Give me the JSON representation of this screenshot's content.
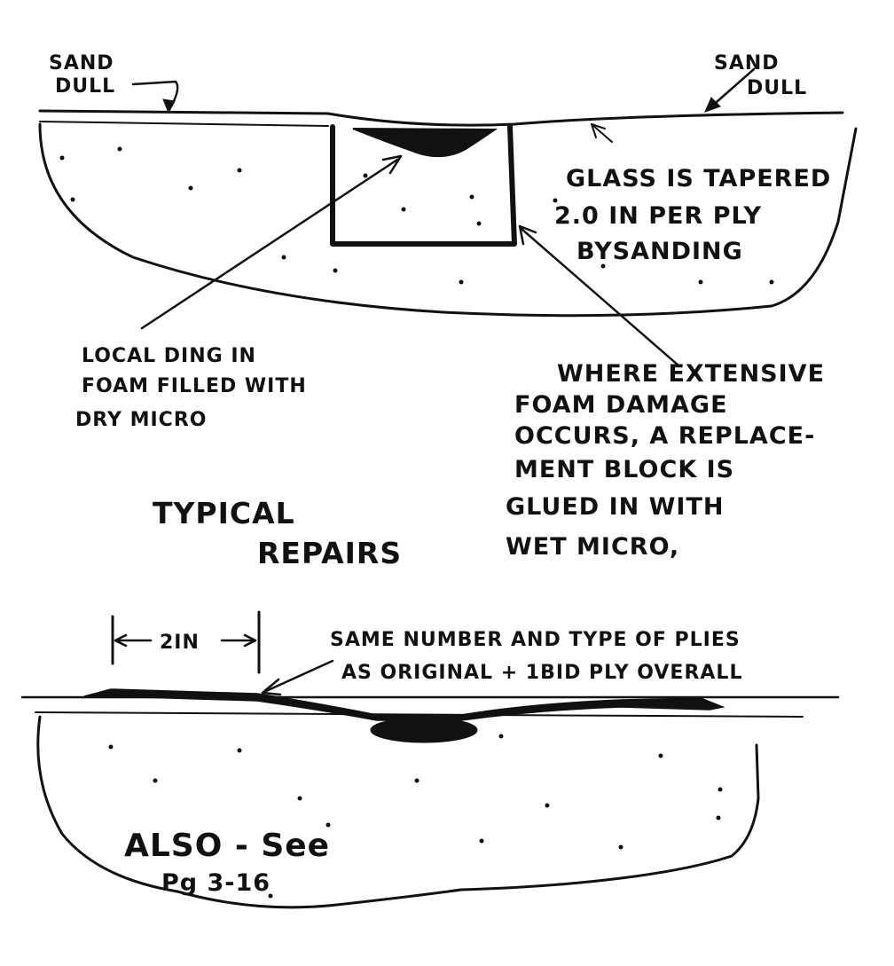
{
  "top_diagram": {
    "sand_dull_left": [
      "SAND",
      "DULL"
    ],
    "sand_dull_right": [
      "SAND",
      "DULL"
    ],
    "glass_taper": [
      "GLASS IS TAPERED",
      "2.0 IN PER PLY",
      "BYSANDING"
    ],
    "local_ding": [
      "LOCAL DING IN",
      "FOAM FILLED WITH",
      "DRY MICRO"
    ],
    "extensive_damage": [
      "WHERE EXTENSIVE",
      "FOAM DAMAGE",
      "OCCURS, A REPLACE-",
      "MENT BLOCK IS",
      "GLUED IN WITH",
      "WET MICRO,"
    ],
    "title": [
      "TYPICAL",
      "REPAIRS"
    ]
  },
  "bottom_diagram": {
    "dimension": "2IN",
    "plies_note": [
      "SAME NUMBER AND TYPE OF PLIES",
      "AS ORIGINAL + 1BID PLY OVERALL"
    ],
    "also_see": [
      "ALSO - See",
      "Pg 3-16"
    ]
  },
  "colors": {
    "ink": "#111111",
    "paper": "#ffffff"
  }
}
